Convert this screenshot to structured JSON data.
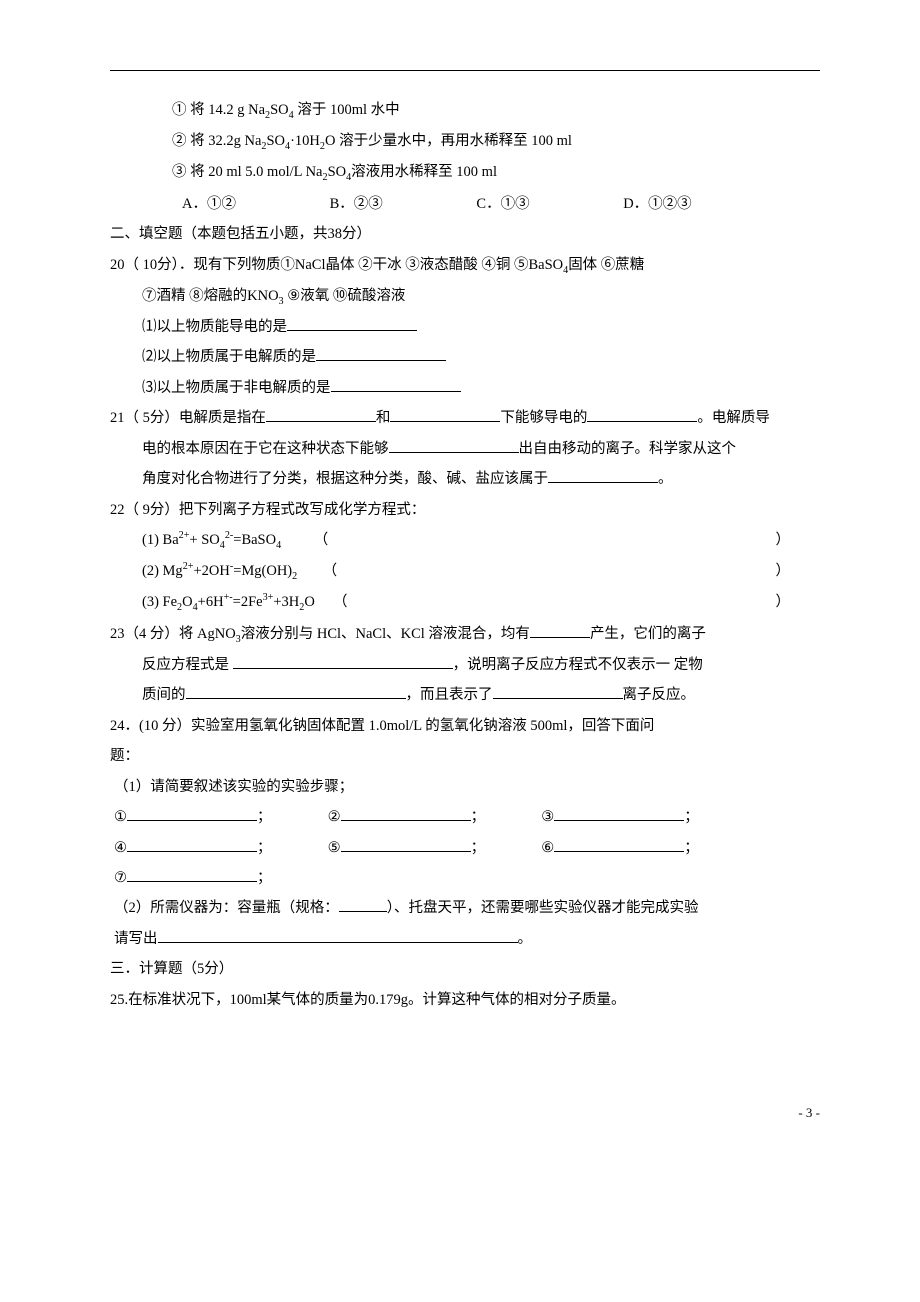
{
  "colors": {
    "text": "#000000",
    "background": "#ffffff",
    "rule": "#000000"
  },
  "typography": {
    "body_size_pt": 11,
    "line_height": 2.1,
    "font_family": "SimSun"
  },
  "q19": {
    "opt1": "① 将 14.2 g Na",
    "opt1_b": "SO",
    "opt1_c": " 溶于 100ml 水中",
    "opt2_a": "② 将 32.2g Na",
    "opt2_b": "SO",
    "opt2_c": "·10H",
    "opt2_d": "O 溶于少量水中，再用水稀释至 100 ml",
    "opt3_a": "③ 将 20 ml 5.0 mol/L Na",
    "opt3_b": "SO",
    "opt3_c": "溶液用水稀释至 100 ml",
    "A": "A．①②",
    "B": "B．②③",
    "C": "C．①③",
    "D": "D．①②③"
  },
  "sec2": "二、填空题（本题包括五小题，共38分）",
  "q20": {
    "stem_a": "20（ 10分）．现有下列物质①NaCl晶体 ②干冰 ③液态醋酸 ④铜 ⑤BaSO",
    "stem_b": "固体 ⑥蔗糖",
    "line2": "⑦酒精 ⑧熔融的KNO",
    "line2b": " ⑨液氧 ⑩硫酸溶液",
    "p1": "⑴以上物质能导电的是",
    "p2": "⑵以上物质属于电解质的是",
    "p3": "⑶以上物质属于非电解质的是"
  },
  "q21": {
    "a": "21（ 5分）电解质是指在",
    "b": "和",
    "c": "下能够导电的",
    "d": "。电解质导",
    "e": "电的根本原因在于它在这种状态下能够",
    "f": "出自由移动的离子。科学家从这个",
    "g": "角度对化合物进行了分类，根据这种分类，酸、碱、盐应该属于",
    "h": "。"
  },
  "q22": {
    "stem": "22（ 9分）把下列离子方程式改写成化学方程式：",
    "eq1_a": "(1) Ba",
    "eq1_b": "+ SO",
    "eq1_c": "=BaSO",
    "eq2_a": "(2) Mg",
    "eq2_b": "+2OH",
    "eq2_c": "=Mg(OH)",
    "eq3_a": "(3) Fe",
    "eq3_b": "O",
    "eq3_c": "+6H",
    "eq3_d": "=2Fe",
    "eq3_e": "+3H",
    "eq3_f": "O",
    "lp": "（",
    "rp": "）"
  },
  "q23": {
    "a": "23（4 分）将 AgNO",
    "b": "溶液分别与 HCl、NaCl、KCl 溶液混合，均有",
    "c": "产生，它们的离子",
    "d": "反应方程式是 ",
    "e": "，说明离子反应方程式不仅表示一  定物",
    "f": "质间的",
    "g": "，而且表示了",
    "h": "离子反应。"
  },
  "q24": {
    "a": "24．(10 分）实验室用氢氧化钠固体配置 1.0mol/L 的氢氧化钠溶液 500ml，回答下面问",
    "b": "题：",
    "p1": "（1）请简要叙述该实验的实验步骤；",
    "s1": "①",
    "s2": "②",
    "s3": "③",
    "s4": "④",
    "s5": "⑤",
    "s6": "⑥",
    "s7": "⑦",
    "semi": "；",
    "p2a": "（2）所需仪器为：容量瓶（规格：",
    "p2b": "）、托盘天平，还需要哪些实验仪器才能完成实验",
    "p2c": "请写出",
    "p2d": "。"
  },
  "sec3": "三．计算题（5分）",
  "q25": "25.在标准状况下，100ml某气体的质量为0.179g。计算这种气体的相对分子质量。",
  "footer": "- 3 -"
}
